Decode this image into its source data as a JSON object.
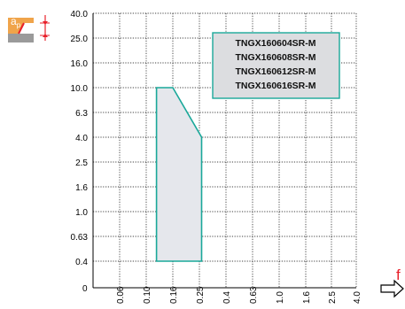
{
  "chart_data": {
    "type": "area",
    "y_scale": "log",
    "x_scale": "log",
    "grid": true,
    "grid_style": "dotted",
    "y_ticks": [
      "40.0",
      "25.0",
      "16.0",
      "10.0",
      "6.3",
      "4.0",
      "2.5",
      "1.6",
      "1.0",
      "0.63",
      "0.4",
      "0"
    ],
    "x_ticks": [
      "0",
      "0.06",
      "0.10",
      "0.16",
      "0.25",
      "0.4",
      "0.63",
      "1.0",
      "1.6",
      "2.5",
      "4.0"
    ],
    "y_axis_symbol": "ap",
    "y_axis_symbol_sub": "p",
    "x_axis_symbol": "f",
    "legend_items": [
      "TNGX160604SR-M",
      "TNGX160608SR-M",
      "TNGX160612SR-M",
      "TNGX160616SR-M"
    ],
    "legend_placement": "top-right",
    "series": [
      {
        "shape": "polygon",
        "points_f_ap": [
          [
            0.12,
            0.4
          ],
          [
            0.12,
            10.0
          ],
          [
            0.16,
            10.0
          ],
          [
            0.26,
            4.0
          ],
          [
            0.26,
            0.4
          ]
        ]
      }
    ],
    "colors": {
      "region_stroke": "#1aa89a",
      "region_fill": "#e5e7ec",
      "legend_fill": "#dcdde0",
      "legend_stroke": "#1aa89a",
      "icon_orange": "#f0a44a",
      "icon_red": "#e8202a",
      "icon_gray": "#9a9a9a",
      "axis": "#000000"
    }
  }
}
